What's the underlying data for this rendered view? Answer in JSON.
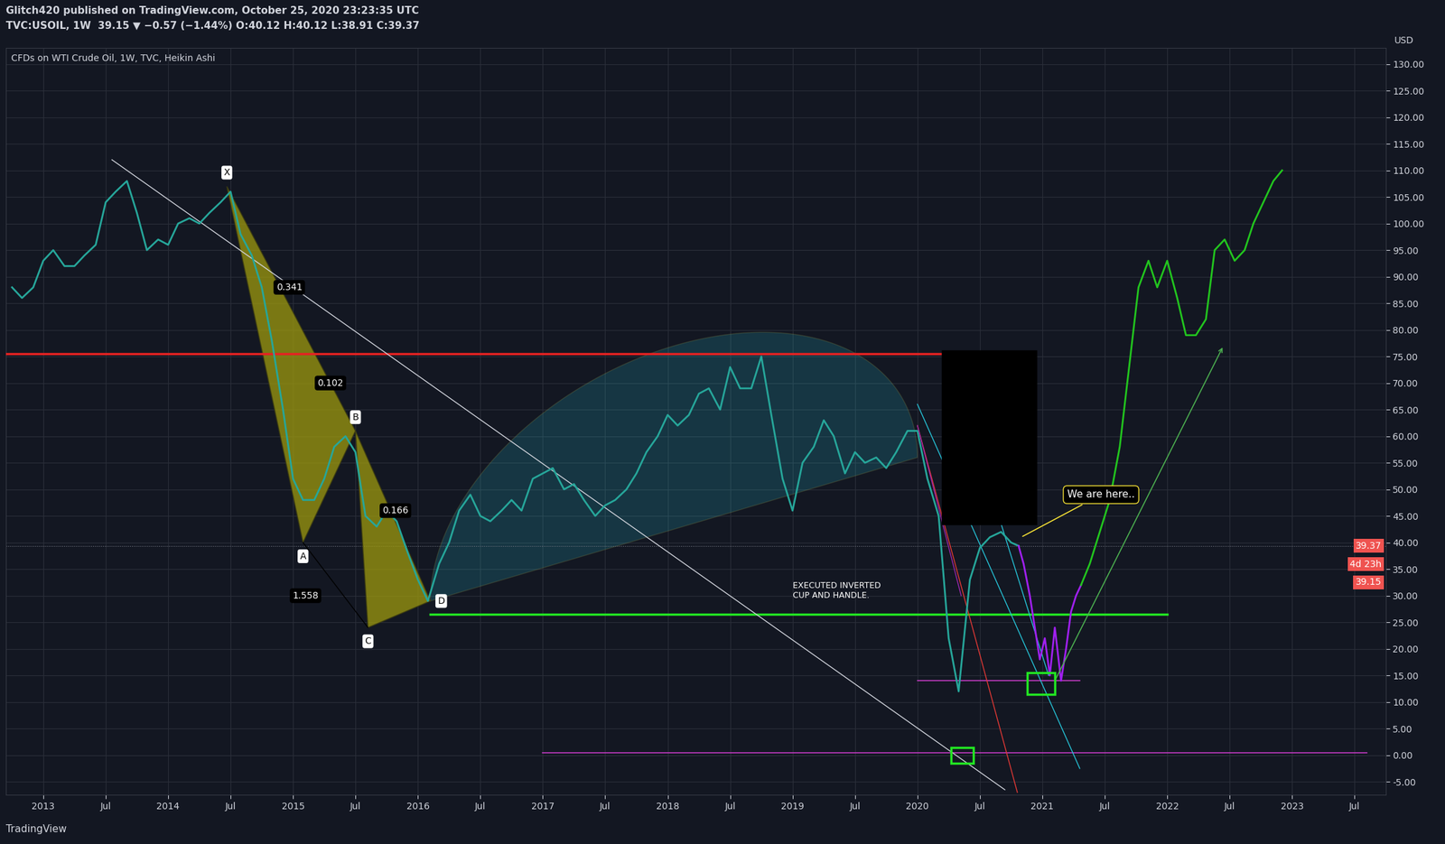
{
  "chart_data": {
    "type": "line",
    "header": [
      "Glitch420 published on TradingView.com, October 25, 2020 23:23:35 UTC",
      "TVC:USOIL, 1W  39.15 ▼ −0.57 (−1.44%) O:40.12 H:40.12 L:38.91 C:39.37"
    ],
    "title": "CFDs on WTI Crude Oil, 1W, TVC, Heikin Ashi",
    "y_unit": "USD",
    "footer": "TradingView",
    "grid": true,
    "xlim": [
      2012.7,
      2023.75
    ],
    "xticks": [
      {
        "value": 2013,
        "label": "2013"
      },
      {
        "value": 2013.5,
        "label": "Jul"
      },
      {
        "value": 2014,
        "label": "2014"
      },
      {
        "value": 2014.5,
        "label": "Jul"
      },
      {
        "value": 2015,
        "label": "2015"
      },
      {
        "value": 2015.5,
        "label": "Jul"
      },
      {
        "value": 2016,
        "label": "2016"
      },
      {
        "value": 2016.5,
        "label": "Jul"
      },
      {
        "value": 2017,
        "label": "2017"
      },
      {
        "value": 2017.5,
        "label": "Jul"
      },
      {
        "value": 2018,
        "label": "2018"
      },
      {
        "value": 2018.5,
        "label": "Jul"
      },
      {
        "value": 2019,
        "label": "2019"
      },
      {
        "value": 2019.5,
        "label": "Jul"
      },
      {
        "value": 2020,
        "label": "2020"
      },
      {
        "value": 2020.5,
        "label": "Jul"
      },
      {
        "value": 2021,
        "label": "2021"
      },
      {
        "value": 2021.5,
        "label": "Jul"
      },
      {
        "value": 2022,
        "label": "2022"
      },
      {
        "value": 2022.5,
        "label": "Jul"
      },
      {
        "value": 2023,
        "label": "2023"
      },
      {
        "value": 2023.5,
        "label": "Jul"
      }
    ],
    "ylim": [
      -7.5,
      133
    ],
    "yticks": [
      {
        "value": -5,
        "label": "-5.00"
      },
      {
        "value": 0,
        "label": "0.00"
      },
      {
        "value": 5,
        "label": "5.00"
      },
      {
        "value": 10,
        "label": "10.00"
      },
      {
        "value": 15,
        "label": "15.00"
      },
      {
        "value": 20,
        "label": "20.00"
      },
      {
        "value": 25,
        "label": "25.00"
      },
      {
        "value": 30,
        "label": "30.00"
      },
      {
        "value": 35,
        "label": "35.00"
      },
      {
        "value": 40,
        "label": "40.00"
      },
      {
        "value": 45,
        "label": "45.00"
      },
      {
        "value": 50,
        "label": "50.00"
      },
      {
        "value": 55,
        "label": "55.00"
      },
      {
        "value": 60,
        "label": "60.00"
      },
      {
        "value": 65,
        "label": "65.00"
      },
      {
        "value": 70,
        "label": "70.00"
      },
      {
        "value": 75,
        "label": "75.00"
      },
      {
        "value": 80,
        "label": "80.00"
      },
      {
        "value": 85,
        "label": "85.00"
      },
      {
        "value": 90,
        "label": "90.00"
      },
      {
        "value": 95,
        "label": "95.00"
      },
      {
        "value": 100,
        "label": "100.00"
      },
      {
        "value": 105,
        "label": "105.00"
      },
      {
        "value": 110,
        "label": "110.00"
      },
      {
        "value": 115,
        "label": "115.00"
      },
      {
        "value": 120,
        "label": "120.00"
      },
      {
        "value": 125,
        "label": "125.00"
      },
      {
        "value": 130,
        "label": "130.00"
      }
    ],
    "series": [
      {
        "color": "#26a69a",
        "line_style": "solid",
        "x": [
          2012.75,
          2012.83,
          2012.92,
          2013.0,
          2013.08,
          2013.17,
          2013.25,
          2013.33,
          2013.42,
          2013.5,
          2013.58,
          2013.67,
          2013.75,
          2013.83,
          2013.92,
          2014.0,
          2014.08,
          2014.17,
          2014.25,
          2014.33,
          2014.42,
          2014.5,
          2014.58,
          2014.67,
          2014.75,
          2014.83,
          2014.92,
          2015.0,
          2015.08,
          2015.17,
          2015.25,
          2015.33,
          2015.42,
          2015.5,
          2015.58,
          2015.67,
          2015.75,
          2015.83,
          2015.92,
          2016.0,
          2016.08,
          2016.17,
          2016.25,
          2016.33,
          2016.42,
          2016.5,
          2016.58,
          2016.67,
          2016.75,
          2016.83,
          2016.92,
          2017.0,
          2017.08,
          2017.17,
          2017.25,
          2017.33,
          2017.42,
          2017.5,
          2017.58,
          2017.67,
          2017.75,
          2017.83,
          2017.92,
          2018.0,
          2018.08,
          2018.17,
          2018.25,
          2018.33,
          2018.42,
          2018.5,
          2018.58,
          2018.67,
          2018.75,
          2018.83,
          2018.92,
          2019.0,
          2019.08,
          2019.17,
          2019.25,
          2019.33,
          2019.42,
          2019.5,
          2019.58,
          2019.67,
          2019.75,
          2019.83,
          2019.92,
          2020.0,
          2020.08,
          2020.17,
          2020.25,
          2020.33,
          2020.42,
          2020.5,
          2020.58,
          2020.67,
          2020.75,
          2020.81
        ],
        "values": [
          88,
          86,
          88,
          93,
          95,
          92,
          92,
          94,
          96,
          104,
          106,
          108,
          102,
          95,
          97,
          96,
          100,
          101,
          100,
          102,
          104,
          106,
          98,
          94,
          88,
          78,
          65,
          52,
          48,
          48,
          52,
          58,
          60,
          57,
          45,
          43,
          46,
          44,
          38,
          33,
          29,
          36,
          40,
          46,
          49,
          45,
          44,
          46,
          48,
          46,
          52,
          53,
          54,
          50,
          51,
          48,
          45,
          47,
          48,
          50,
          53,
          57,
          60,
          64,
          62,
          64,
          68,
          69,
          65,
          73,
          69,
          69,
          75,
          64,
          52,
          46,
          55,
          58,
          63,
          60,
          53,
          57,
          55,
          56,
          54,
          57,
          61,
          61,
          52,
          45,
          22,
          12,
          33,
          39,
          41,
          42,
          40,
          39.37
        ]
      },
      {
        "color": "#a020f0",
        "line_style": "solid",
        "x": [
          2020.81,
          2020.85,
          2020.9,
          2020.94,
          2020.98,
          2021.02,
          2021.06,
          2021.1,
          2021.15,
          2021.19,
          2021.23,
          2021.27,
          2021.31
        ],
        "values": [
          39.37,
          36,
          30,
          24,
          18,
          22,
          15,
          24,
          14,
          20,
          27,
          30,
          32
        ]
      },
      {
        "color": "#22c51e",
        "line_style": "solid",
        "x": [
          2021.31,
          2021.38,
          2021.46,
          2021.54,
          2021.62,
          2021.69,
          2021.77,
          2021.85,
          2021.92,
          2022.0,
          2022.08,
          2022.15,
          2022.23,
          2022.31,
          2022.38,
          2022.46,
          2022.54,
          2022.62,
          2022.69,
          2022.77,
          2022.85,
          2022.92
        ],
        "values": [
          32,
          36,
          42,
          48,
          58,
          72,
          88,
          93,
          88,
          93,
          86,
          79,
          79,
          82,
          95,
          97,
          93,
          95,
          100,
          104,
          108,
          110
        ]
      }
    ],
    "pattern": {
      "color": "#9e9a0e",
      "points": [
        {
          "label": "X",
          "x": 2014.47,
          "y": 107
        },
        {
          "label": "A",
          "x": 2015.08,
          "y": 40
        },
        {
          "label": "B",
          "x": 2015.5,
          "y": 61
        },
        {
          "label": "C",
          "x": 2015.6,
          "y": 24
        },
        {
          "label": "D",
          "x": 2016.1,
          "y": 29
        }
      ],
      "ratios": [
        {
          "text": "0.341",
          "x": 2014.97,
          "y": 88
        },
        {
          "text": "0.102",
          "x": 2015.3,
          "y": 70
        },
        {
          "text": "0.166",
          "x": 2015.82,
          "y": 46
        },
        {
          "text": "1.558",
          "x": 2015.1,
          "y": 30
        }
      ]
    },
    "cup": {
      "start": [
        2016.1,
        29
      ],
      "end": [
        2020.0,
        56
      ],
      "top": 77,
      "color": "#26c6da"
    },
    "levels": [
      {
        "y": 75.5,
        "x": [
          2012.7,
          2020.4
        ],
        "color": "#e52222"
      },
      {
        "y": 26.5,
        "x": [
          2016.1,
          2022.0
        ],
        "color": "#22e522"
      },
      {
        "y": 0.5,
        "x": [
          2017.0,
          2023.6
        ],
        "color": "#c43bc4"
      },
      {
        "y": 14,
        "x": [
          2020.0,
          2021.3
        ],
        "color": "#c43bc4"
      }
    ],
    "trend_lines": [
      {
        "from": [
          2013.55,
          112
        ],
        "to": [
          2020.7,
          -6.5
        ],
        "color": "#d1d4dc"
      },
      {
        "from": [
          2020.0,
          62
        ],
        "to": [
          2020.8,
          -7
        ],
        "color": "#e53935"
      },
      {
        "from": [
          2020.0,
          66
        ],
        "to": [
          2021.3,
          -2.5
        ],
        "color": "#26c6da"
      },
      {
        "from": [
          2020.65,
          45
        ],
        "to": [
          2021.05,
          15
        ],
        "color": "#26c6da"
      },
      {
        "from": [
          2020.0,
          62
        ],
        "to": [
          2020.35,
          30
        ],
        "color": "#9c27b0"
      },
      {
        "from": [
          2015.08,
          40
        ],
        "to": [
          2015.6,
          24
        ],
        "color": "#000000"
      }
    ],
    "arrows": [
      {
        "from": [
          2021.1,
          14
        ],
        "to": [
          2022.45,
          77
        ],
        "color": "#4caf50"
      }
    ],
    "boxes": [
      {
        "x": [
          2020.2,
          2020.95
        ],
        "y": [
          43.5,
          76
        ],
        "color": "#000000",
        "fill": true
      },
      {
        "x": [
          2020.27,
          2020.45
        ],
        "y": [
          -1.5,
          1.5
        ],
        "color": "#22e522",
        "fill": false
      },
      {
        "x": [
          2020.88,
          2021.1
        ],
        "y": [
          11.5,
          15.5
        ],
        "color": "#22e522",
        "fill": false
      }
    ],
    "annotations": [
      {
        "text": "EXECUTED INVERTED\nCUP AND HANDLE.",
        "x": 2019.0,
        "y": 31,
        "color": "#ffffff"
      },
      {
        "text": "We are here..",
        "x": 2020.83,
        "y": 41,
        "text_x": 2021.2,
        "text_y": 49,
        "color": "#f5e135"
      }
    ],
    "price_labels": [
      {
        "value": 39.37,
        "label": "39.37",
        "color": "#ef5350"
      },
      {
        "label": "4d 23h",
        "color": "#ef5350"
      },
      {
        "value": 39.15,
        "label": "39.15",
        "color": "#ef5350"
      }
    ]
  }
}
